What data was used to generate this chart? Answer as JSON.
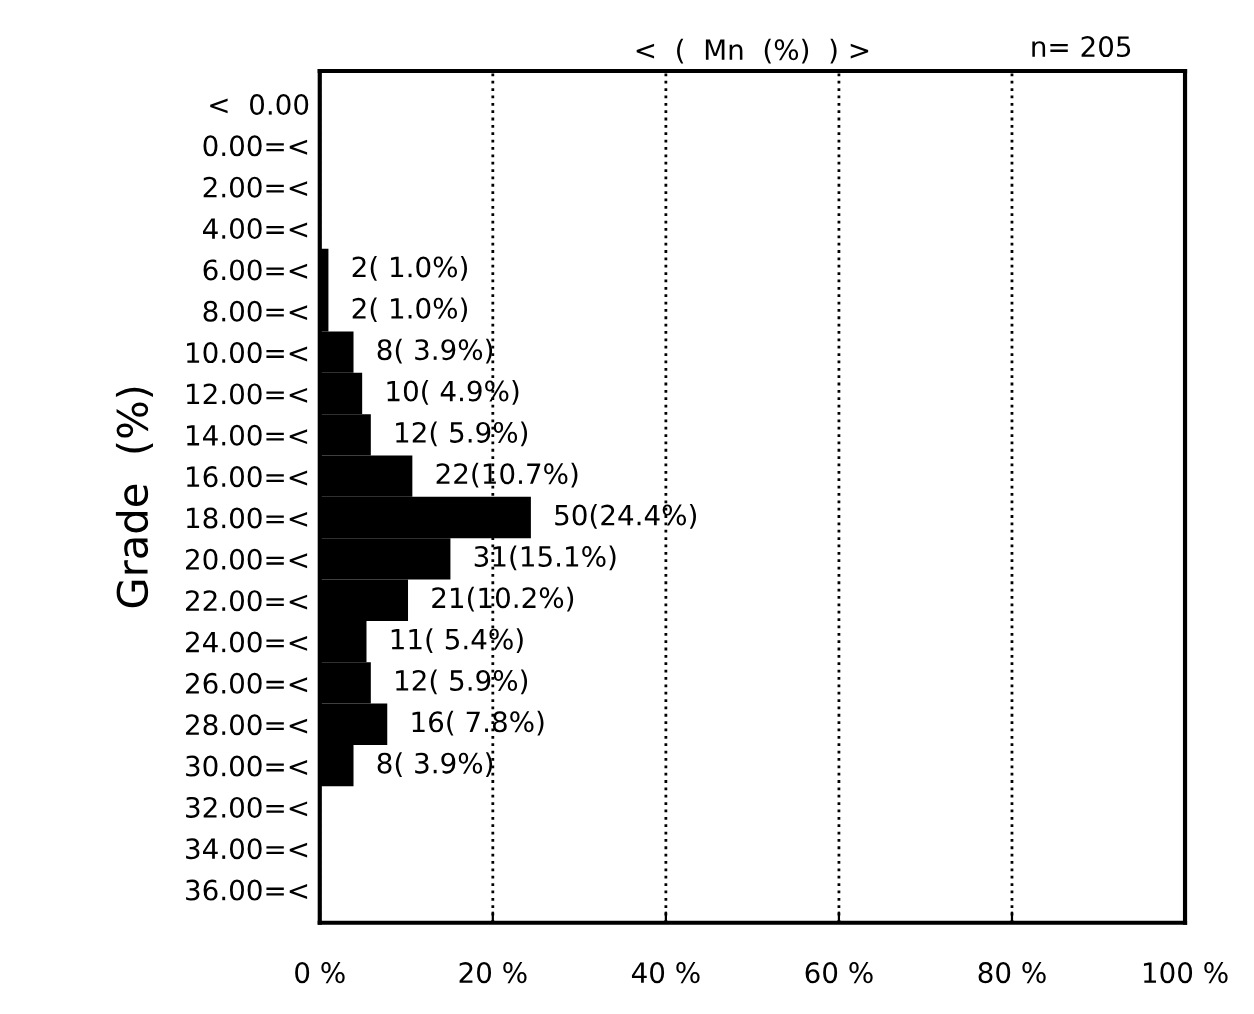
{
  "chart_data": {
    "type": "bar",
    "orientation": "horizontal",
    "title": "<  (  Mn  (%)  ) >",
    "ylabel": "Grade  (%)",
    "annotations": [
      "n= 205"
    ],
    "categories": [
      "<  0.00",
      "0.00=<",
      "2.00=<",
      "4.00=<",
      "6.00=<",
      "8.00=<",
      "10.00=<",
      "12.00=<",
      "14.00=<",
      "16.00=<",
      "18.00=<",
      "20.00=<",
      "22.00=<",
      "24.00=<",
      "26.00=<",
      "28.00=<",
      "30.00=<",
      "32.00=<",
      "34.00=<",
      "36.00=<"
    ],
    "values": [
      0,
      0,
      0,
      0,
      1.0,
      1.0,
      3.9,
      4.9,
      5.9,
      10.7,
      24.4,
      15.1,
      10.2,
      5.4,
      5.9,
      7.8,
      3.9,
      0,
      0,
      0
    ],
    "value_labels": [
      null,
      null,
      null,
      null,
      "2( 1.0%)",
      "2( 1.0%)",
      "8( 3.9%)",
      "10( 4.9%)",
      "12( 5.9%)",
      "22(10.7%)",
      "50(24.4%)",
      "31(15.1%)",
      "21(10.2%)",
      "11( 5.4%)",
      "12( 5.9%)",
      "16( 7.8%)",
      "8( 3.9%)",
      null,
      null,
      null
    ],
    "color": "#000000",
    "xlim": [
      0,
      100
    ],
    "xticks": [
      {
        "value": 0,
        "label": "0 %"
      },
      {
        "value": 20,
        "label": "20 %"
      },
      {
        "value": 40,
        "label": "40 %"
      },
      {
        "value": 60,
        "label": "60 %"
      },
      {
        "value": 80,
        "label": "80 %"
      },
      {
        "value": 100,
        "label": "100 %"
      }
    ],
    "grid": "x",
    "line_style": "dotted",
    "legend": false
  }
}
